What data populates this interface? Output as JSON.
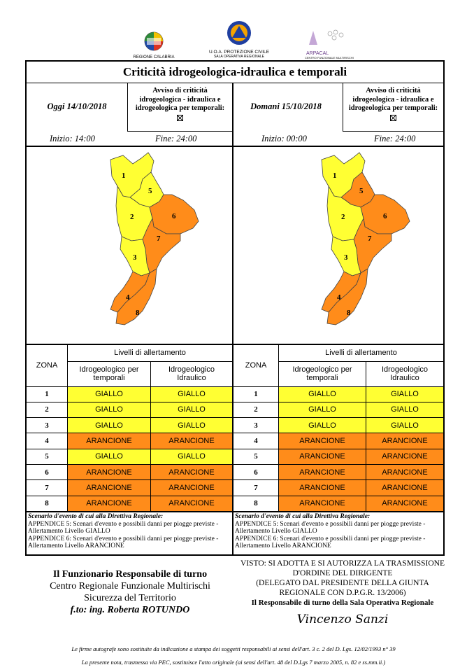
{
  "header": {
    "region_logo_caption": "REGIONE CALABRIA",
    "protezione_line1": "U.O.A. PROTEZIONE CIVILE",
    "protezione_line2": "SALA OPERATIVA REGIONALE",
    "arpacal_caption": "ARPACAL",
    "arpacal_sub": "CENTRO FUNZIONALE MULTIRISCHI"
  },
  "title": "Criticità idrogeologica-idraulica e temporali",
  "today": {
    "day_label": "Oggi 14/10/2018",
    "avviso_l1": "Avviso di criticità",
    "avviso_l2": "idrogeologica - idraulica e",
    "avviso_l3": "idrogeologica per temporali:",
    "inizio": "Inizio: 14:00",
    "fine": "Fine: 24:00"
  },
  "tomorrow": {
    "day_label": "Domani 15/10/2018",
    "avviso_l1": "Avviso di criticità",
    "avviso_l2": "idrogeologica - idraulica e",
    "avviso_l3": "idrogeologica per temporali:",
    "inizio": "Inizio: 00:00",
    "fine": "Fine: 24:00"
  },
  "colors": {
    "giallo": "#ffff33",
    "arancione": "#ff8c1a"
  },
  "table_headers": {
    "zona": "ZONA",
    "livelli": "Livelli di allertamento",
    "col1_l1": "Idrogeologico per",
    "col1_l2": "temporali",
    "col2_l1": "Idrogeologico",
    "col2_l2": "Idraulico"
  },
  "today_rows": [
    {
      "zona": "1",
      "a": "GIALLO",
      "b": "GIALLO"
    },
    {
      "zona": "2",
      "a": "GIALLO",
      "b": "GIALLO"
    },
    {
      "zona": "3",
      "a": "GIALLO",
      "b": "GIALLO"
    },
    {
      "zona": "4",
      "a": "ARANCIONE",
      "b": "ARANCIONE"
    },
    {
      "zona": "5",
      "a": "GIALLO",
      "b": "GIALLO"
    },
    {
      "zona": "6",
      "a": "ARANCIONE",
      "b": "ARANCIONE"
    },
    {
      "zona": "7",
      "a": "ARANCIONE",
      "b": "ARANCIONE"
    },
    {
      "zona": "8",
      "a": "ARANCIONE",
      "b": "ARANCIONE"
    }
  ],
  "tomorrow_rows": [
    {
      "zona": "1",
      "a": "GIALLO",
      "b": "GIALLO"
    },
    {
      "zona": "2",
      "a": "GIALLO",
      "b": "GIALLO"
    },
    {
      "zona": "3",
      "a": "GIALLO",
      "b": "GIALLO"
    },
    {
      "zona": "4",
      "a": "ARANCIONE",
      "b": "ARANCIONE"
    },
    {
      "zona": "5",
      "a": "ARANCIONE",
      "b": "ARANCIONE"
    },
    {
      "zona": "6",
      "a": "ARANCIONE",
      "b": "ARANCIONE"
    },
    {
      "zona": "7",
      "a": "ARANCIONE",
      "b": "ARANCIONE"
    },
    {
      "zona": "8",
      "a": "ARANCIONE",
      "b": "ARANCIONE"
    }
  ],
  "scenario": {
    "heading": "Scenario d'evento di cui alla Direttiva Regionale:",
    "app5": "APPENDICE 5: Scenari d'evento e possibili danni per piogge previste - Allertamento Livello GIALLO",
    "app6": "APPENDICE 6: Scenari d'evento e possibili danni per piogge previste - Allertamento Livello ARANCIONE"
  },
  "footer_left": {
    "l1": "Il Funzionario Responsabile di turno",
    "l2": "Centro Regionale Funzionale Multirischi",
    "l3": "Sicurezza del Territorio",
    "l4": "f.to: ing. Roberta ROTUNDO"
  },
  "footer_right": {
    "l1": "VISTO: SI ADOTTA E SI AUTORIZZA LA TRASMISSIONE",
    "l2": "D'ORDINE DEL DIRIGENTE",
    "l3": "(DELEGATO DAL PRESIDENTE DELLA GIUNTA",
    "l4": "REGIONALE CON D.P.G.R. 13/2006)",
    "l5": "Il Responsabile di turno della Sala Operativa Regionale",
    "signature": "Vincenzo Sanzi"
  },
  "notes": {
    "n1": "Le firme autografe sono sostituite da indicazione a stampa dei soggetti responsabili ai sensi dell'art. 3 c. 2 del D. Lgs. 12/02/1993 n° 39",
    "n2": "La presente nota, trasmessa via PEC, sostituisce l'atto originale (ai sensi dell'art. 48 del D.Lgs 7 marzo 2005, n. 82 e ss.mm.ii.)"
  },
  "map_zones": {
    "today": {
      "1": "giallo",
      "2": "giallo",
      "3": "giallo",
      "4": "arancione",
      "5": "giallo",
      "6": "arancione",
      "7": "arancione",
      "8": "arancione"
    },
    "tomorrow": {
      "1": "giallo",
      "2": "giallo",
      "3": "giallo",
      "4": "arancione",
      "5": "arancione",
      "6": "arancione",
      "7": "arancione",
      "8": "arancione"
    }
  }
}
